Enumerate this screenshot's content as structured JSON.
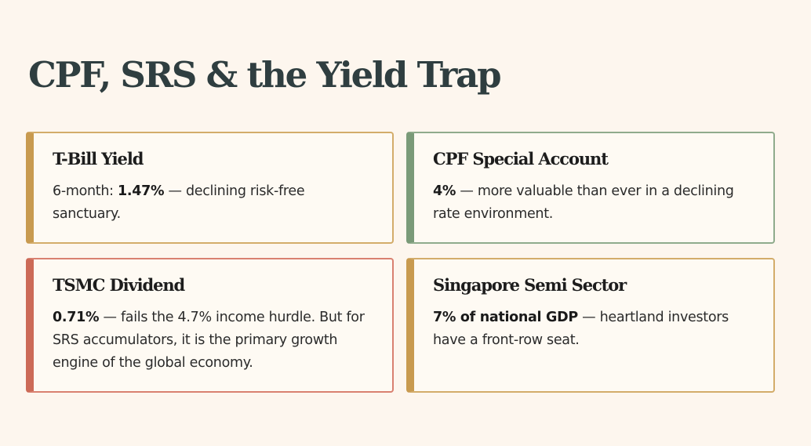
{
  "title": "CPF, SRS & the Yield Trap",
  "cards": [
    {
      "title": "T-Bill Yield",
      "body_pre": "6-month: ",
      "body_bold": "1.47%",
      "body_post": " — declining risk-free sanctuary.",
      "accent": "#c89a4f",
      "border": "#d3ac6a"
    },
    {
      "title": "CPF Special Account",
      "body_pre": "",
      "body_bold": "4%",
      "body_post": " — more valuable than ever in a declining rate environment.",
      "accent": "#7a9a78",
      "border": "#8fab8c"
    },
    {
      "title": "TSMC Dividend",
      "body_pre": "",
      "body_bold": "0.71%",
      "body_post": " — fails the 4.7% income hurdle. But for SRS accumulators, it is the primary growth engine of the global economy.",
      "accent": "#cc6a57",
      "border": "#d98070"
    },
    {
      "title": "Singapore Semi Sector",
      "body_pre": "",
      "body_bold": "7% of national GDP",
      "body_post": " — heartland investors have a front-row seat.",
      "accent": "#c89a4f",
      "border": "#d3ac6a"
    }
  ]
}
